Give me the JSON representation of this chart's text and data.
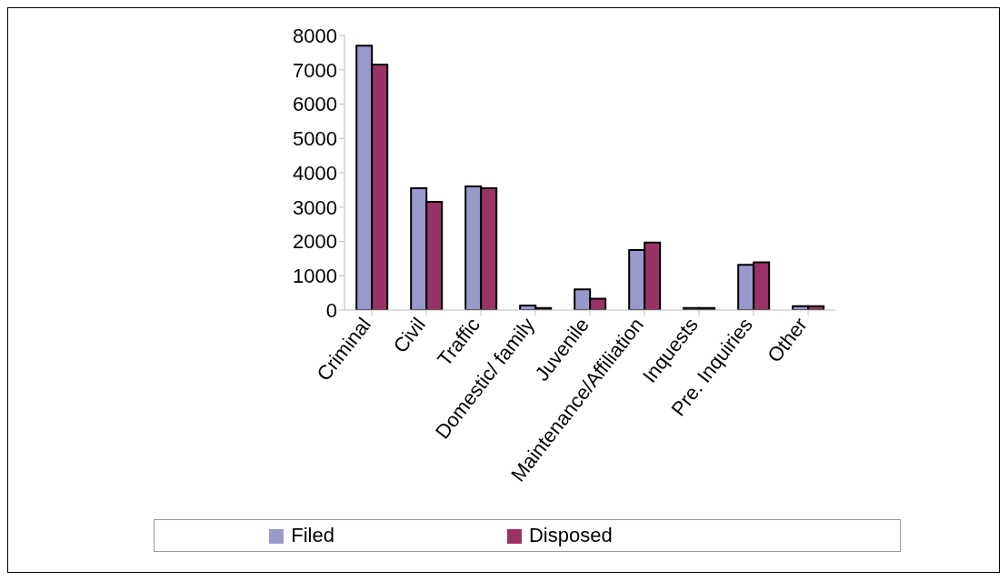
{
  "chart_data": {
    "type": "bar",
    "categories": [
      "Criminal",
      "Civil",
      "Traffic",
      "Domestic/ family",
      "Juvenile",
      "Maintenance/Affiliation",
      "Inquests",
      "Pre. Inquiries",
      "Other"
    ],
    "series": [
      {
        "name": "Filed",
        "color": "#9999cc",
        "values": [
          7700,
          3550,
          3600,
          130,
          600,
          1750,
          60,
          1320,
          110
        ]
      },
      {
        "name": "Disposed",
        "color": "#993366",
        "values": [
          7150,
          3150,
          3550,
          60,
          330,
          1970,
          60,
          1390,
          110
        ]
      }
    ],
    "ylim": [
      0,
      8000
    ],
    "yticks": [
      0,
      1000,
      2000,
      3000,
      4000,
      5000,
      6000,
      7000,
      8000
    ],
    "grid": false,
    "legend": "bottom"
  }
}
